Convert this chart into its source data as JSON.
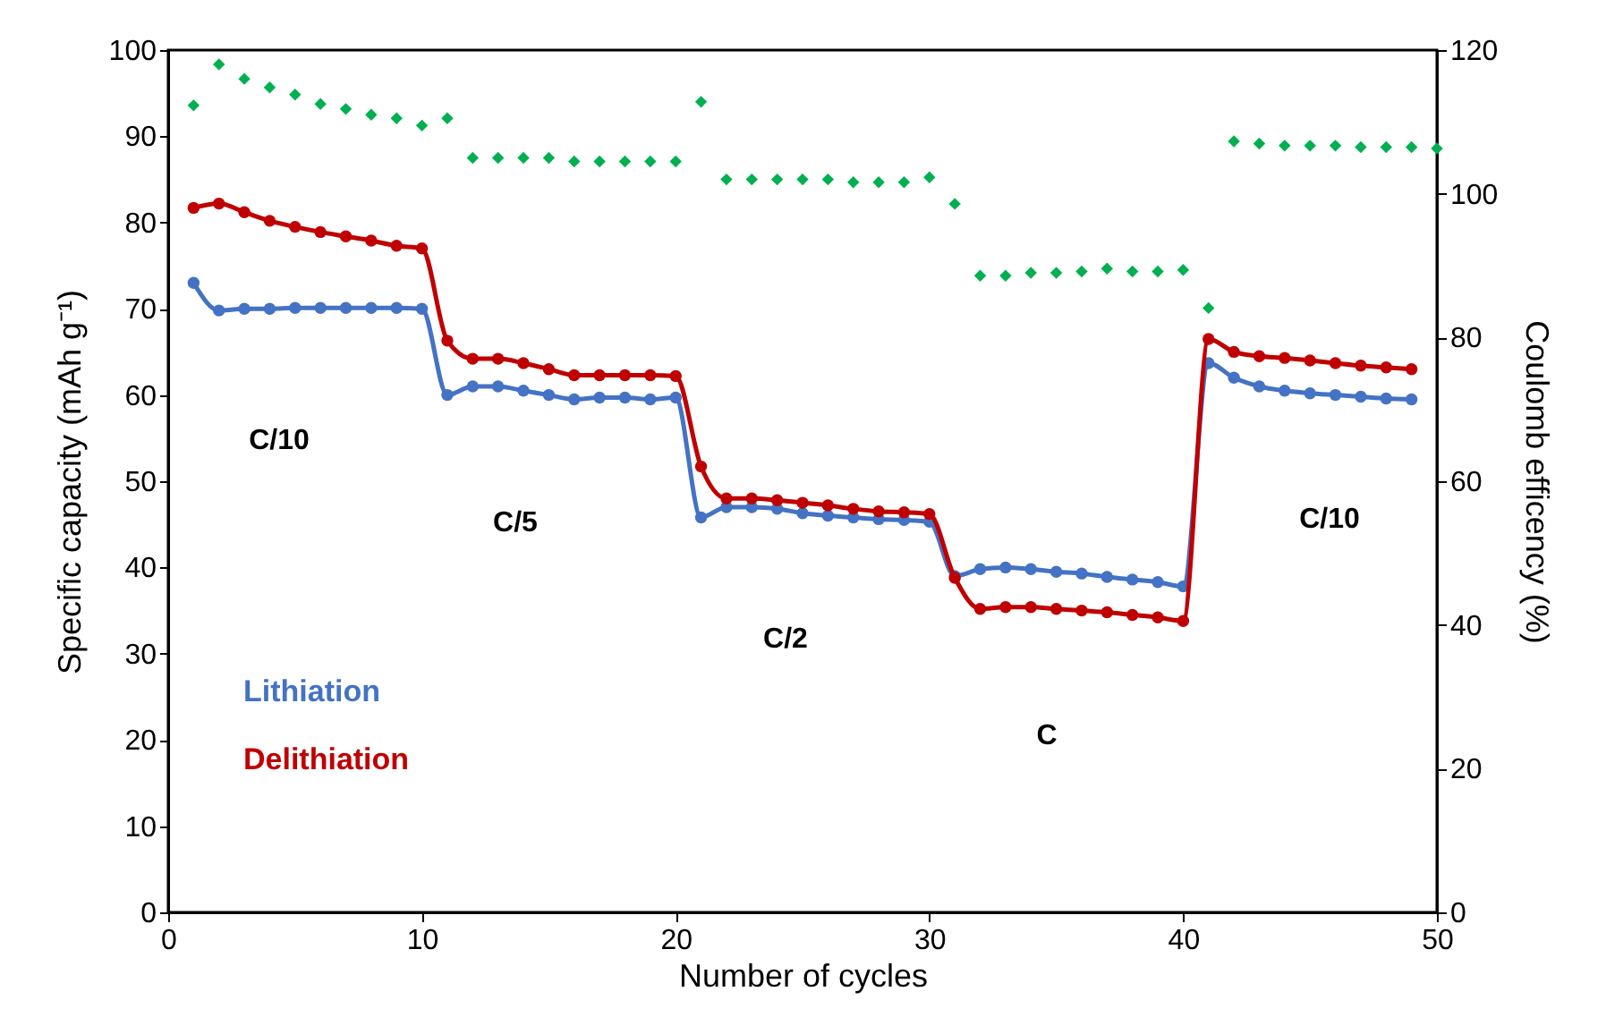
{
  "chart_data": {
    "type": "line",
    "xlabel": "Number of cycles",
    "ylabel": "Specific capacity (mAh g⁻¹)",
    "y2label": "Coulomb efficency (%)",
    "x": [
      1,
      2,
      3,
      4,
      5,
      6,
      7,
      8,
      9,
      10,
      11,
      12,
      13,
      14,
      15,
      16,
      17,
      18,
      19,
      20,
      21,
      22,
      23,
      24,
      25,
      26,
      27,
      28,
      29,
      30,
      31,
      32,
      33,
      34,
      35,
      36,
      37,
      38,
      39,
      40,
      41,
      42,
      43,
      44,
      45,
      46,
      47,
      48,
      49,
      50
    ],
    "xlim": [
      0,
      50
    ],
    "xticks": [
      0,
      10,
      20,
      30,
      40,
      50
    ],
    "ylim": [
      0,
      100
    ],
    "yticks": [
      0,
      10,
      20,
      30,
      40,
      50,
      60,
      70,
      80,
      90,
      100
    ],
    "y2lim": [
      0,
      120
    ],
    "y2ticks": [
      0,
      20,
      40,
      60,
      80,
      100,
      120
    ],
    "marker": "circle",
    "line_style": "solid",
    "grid": false,
    "series": [
      {
        "name": "Lithiation",
        "color": "#4472c4",
        "values": [
          73,
          69.8,
          70,
          70,
          70.1,
          70.1,
          70.1,
          70.1,
          70.1,
          70,
          60,
          61,
          61,
          60.5,
          60,
          59.5,
          59.7,
          59.7,
          59.5,
          59.7,
          45.8,
          47,
          47,
          46.8,
          46.3,
          46,
          45.8,
          45.6,
          45.5,
          45.3,
          39,
          39.8,
          40,
          39.8,
          39.5,
          39.3,
          38.9,
          38.6,
          38.3,
          37.8,
          63.7,
          62,
          61,
          60.5,
          60.2,
          60,
          59.8,
          59.6,
          59.5,
          null
        ]
      },
      {
        "name": "Delithiation",
        "color": "#c00000",
        "values": [
          81.7,
          82.2,
          81.2,
          80.2,
          79.5,
          78.9,
          78.4,
          77.9,
          77.3,
          77,
          66.3,
          64.2,
          64.2,
          63.7,
          63,
          62.3,
          62.3,
          62.3,
          62.3,
          62.2,
          51.7,
          48,
          48,
          47.8,
          47.5,
          47.2,
          46.8,
          46.5,
          46.4,
          46.2,
          38.8,
          35.2,
          35.4,
          35.4,
          35.2,
          35,
          34.8,
          34.5,
          34.2,
          33.8,
          66.5,
          65,
          64.5,
          64.3,
          64,
          63.7,
          63.4,
          63.2,
          63,
          null
        ]
      },
      {
        "type": "scatter",
        "marker": "diamond",
        "axis": "y2",
        "color": "#00b050",
        "values": [
          112.3,
          118,
          116,
          114.8,
          113.8,
          112.5,
          111.8,
          111,
          110.5,
          109.5,
          110.5,
          105,
          105,
          105,
          105,
          104.5,
          104.5,
          104.5,
          104.5,
          104.5,
          112.8,
          102,
          102,
          102,
          102,
          102,
          101.6,
          101.6,
          101.6,
          102.3,
          98.6,
          88.6,
          88.6,
          89,
          89,
          89.2,
          89.6,
          89.2,
          89.2,
          89.4,
          84.1,
          107.3,
          107,
          106.7,
          106.7,
          106.7,
          106.5,
          106.5,
          106.5,
          106.3
        ]
      }
    ],
    "annotations": [
      "C/10",
      "C/5",
      "C/2",
      "C",
      "C/10"
    ]
  }
}
